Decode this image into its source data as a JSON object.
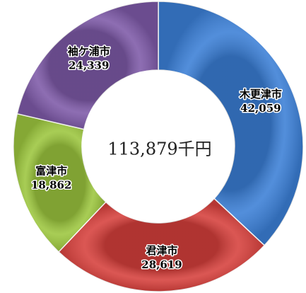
{
  "chart_data": {
    "type": "donut",
    "center_label": "113,879千円",
    "categories": [
      "木更津市",
      "君津市",
      "富津市",
      "袖ケ浦市"
    ],
    "values": [
      42059,
      28619,
      18862,
      24339
    ],
    "value_labels": [
      "42,059",
      "28,619",
      "18,862",
      "24,339"
    ],
    "colors": [
      "#3b7fd6",
      "#d6403c",
      "#9cc63e",
      "#7e5aa8"
    ]
  }
}
